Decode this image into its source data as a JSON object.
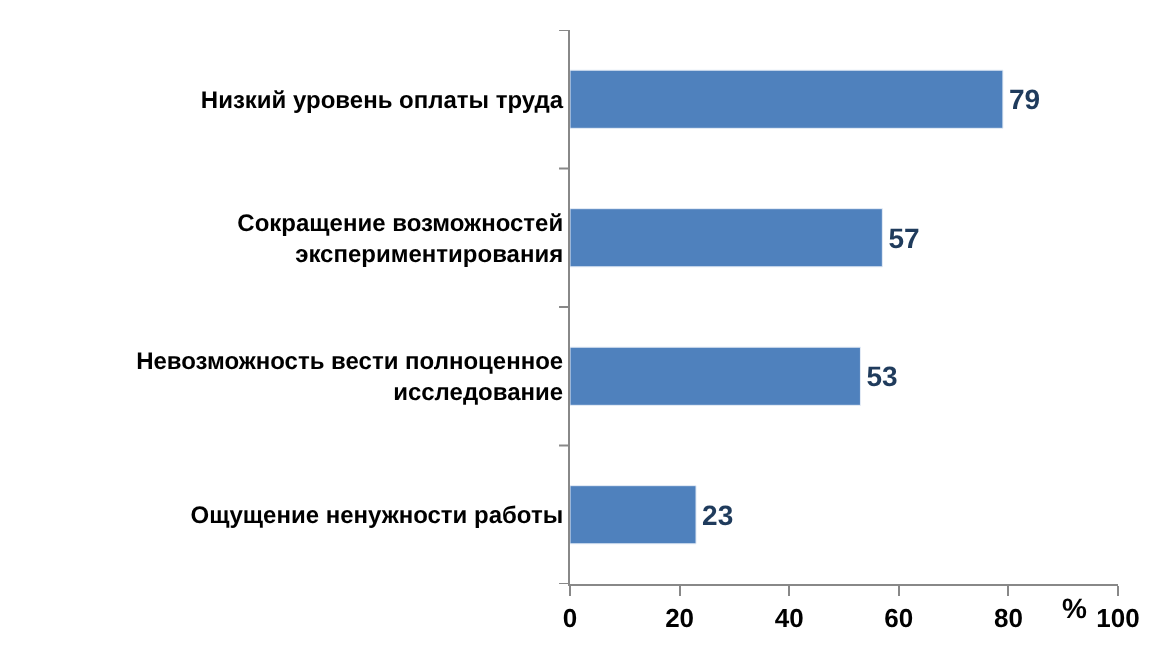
{
  "chart_data": {
    "type": "bar",
    "orientation": "horizontal",
    "xlabel": "%",
    "categories": [
      "Низкий уровень оплаты труда",
      "Сокращение возможностей экспериментирования",
      "Невозможность вести полноценное исследование",
      "Ощущение ненужности работы"
    ],
    "values": [
      79,
      57,
      53,
      23
    ],
    "color": "#4f81bd",
    "data_labels": true,
    "xlim": [
      0,
      100
    ],
    "xticks": [
      0,
      20,
      40,
      60,
      80,
      100
    ]
  }
}
